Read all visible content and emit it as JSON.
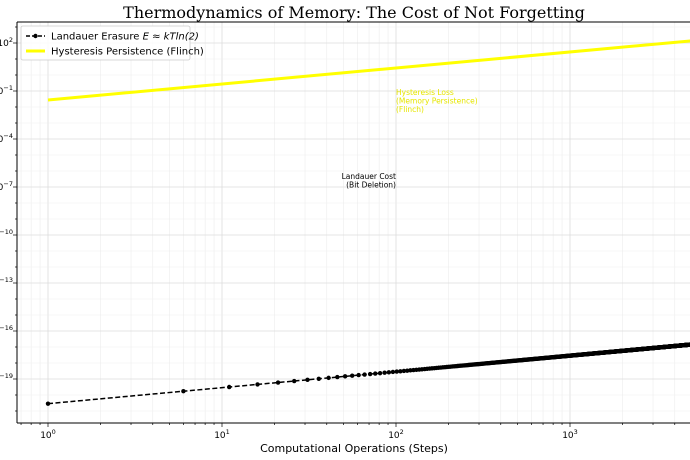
{
  "chart_data": {
    "type": "line",
    "title": "Thermodynamics of Memory: The Cost of Not Forgetting",
    "xlabel": "Computational Operations (Steps)",
    "ylabel": "",
    "xscale": "log",
    "yscale": "log",
    "xlim": [
      0.66,
      5000
    ],
    "ylim": [
      5e-23,
      2000
    ],
    "grid": "major and minor",
    "legend_position": "top-left",
    "x_ticks": [
      {
        "value": 1,
        "base": "10",
        "exp": "0"
      },
      {
        "value": 10,
        "base": "10",
        "exp": "1"
      },
      {
        "value": 100,
        "base": "10",
        "exp": "2"
      },
      {
        "value": 1000,
        "base": "10",
        "exp": "3"
      }
    ],
    "y_ticks": [
      {
        "value": 100,
        "base": "10",
        "exp": "2"
      },
      {
        "value": 0.1,
        "base": "10",
        "exp": "−1"
      },
      {
        "value": 0.0001,
        "base": "10",
        "exp": "−4"
      },
      {
        "value": 1e-07,
        "base": "10",
        "exp": "−7"
      },
      {
        "value": 1e-10,
        "base": "10",
        "exp": "−10"
      },
      {
        "value": 1e-13,
        "base": "10",
        "exp": "−13"
      },
      {
        "value": 1e-16,
        "base": "10",
        "exp": "−16"
      },
      {
        "value": 1e-19,
        "base": "10",
        "exp": "−19"
      }
    ],
    "series": [
      {
        "name": "Landauer Erasure E ≈ kTln(2)",
        "legend_label": "Landauer Erasure ",
        "legend_math": "E ≈ kTln(2)",
        "style": "dashed with dot markers",
        "color": "#000000",
        "x": {
          "from": 1,
          "to": 4996,
          "step": 5
        },
        "y_per_step": 2.87e-21
      },
      {
        "name": "Hysteresis Persistence (Flinch)",
        "style": "solid thick",
        "color": "#ffff00",
        "x": [
          1,
          5000
        ],
        "y": [
          0.0275,
          137
        ]
      }
    ],
    "annotations": [
      {
        "lines": [
          "Hysteresis Loss",
          "(Memory Persistence)",
          "(Flinch)"
        ],
        "x": 100,
        "y": 0.056,
        "color": "#e6e600",
        "align": "left"
      },
      {
        "lines": [
          "Landauer Cost",
          "(Bit Deletion)"
        ],
        "x": 100,
        "y": 3.2e-07,
        "color": "#000000",
        "align": "right"
      }
    ]
  }
}
